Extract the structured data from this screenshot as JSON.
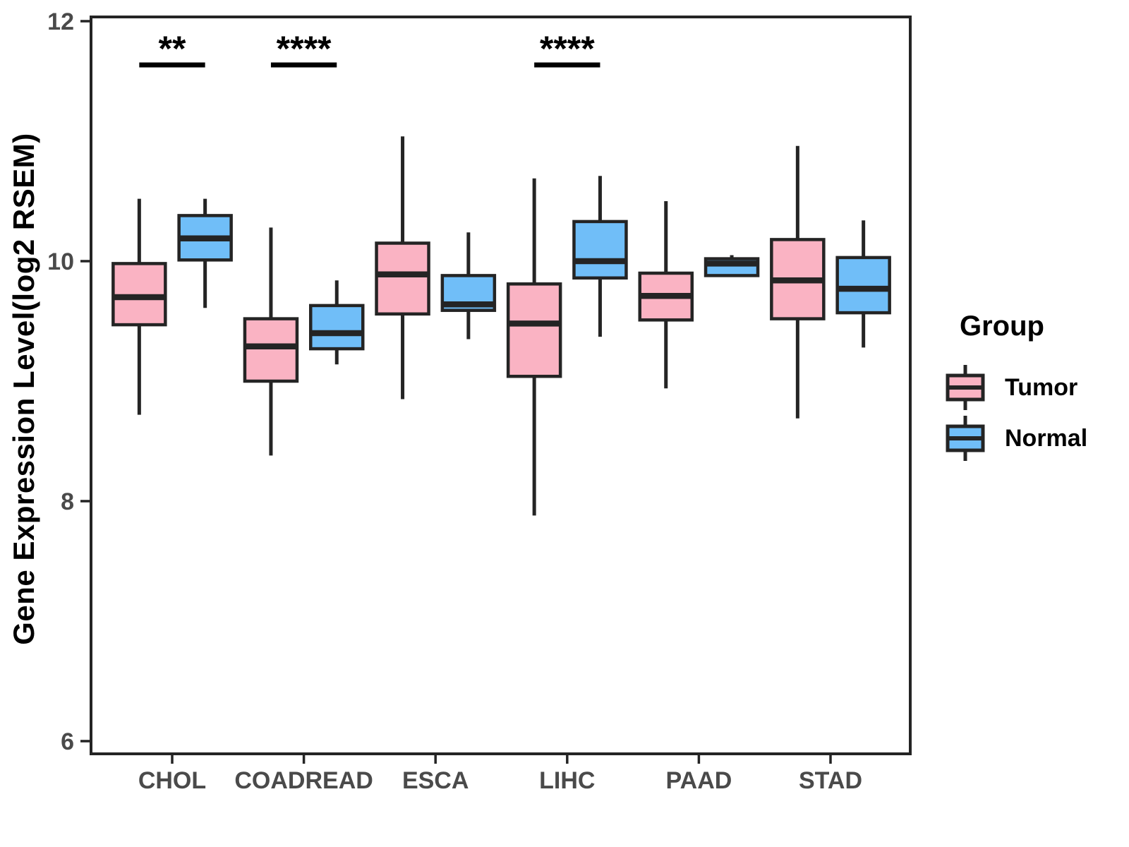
{
  "chart_data": {
    "type": "boxplot",
    "title": "",
    "ylabel": "Gene Expression Level(log2 RSEM)",
    "xlabel": "",
    "categories": [
      "CHOL",
      "COADREAD",
      "ESCA",
      "LIHC",
      "PAAD",
      "STAD"
    ],
    "yticks": [
      6,
      8,
      10,
      12
    ],
    "ylim": [
      5.9,
      12.0
    ],
    "grid": "off",
    "legend": {
      "title": "Group",
      "position": "right"
    },
    "colors": {
      "line": "#242424",
      "axis_text": "#4a4a4a",
      "tumor": "#FAB3C3",
      "normal": "#70BEF8"
    },
    "series": [
      {
        "name": "Tumor",
        "color": "#FAB3C3",
        "boxes": [
          {
            "category": "CHOL",
            "low": 8.72,
            "q1": 9.47,
            "median": 9.7,
            "q3": 9.98,
            "high": 10.52
          },
          {
            "category": "COADREAD",
            "low": 8.38,
            "q1": 9.0,
            "median": 9.29,
            "q3": 9.52,
            "high": 10.28
          },
          {
            "category": "ESCA",
            "low": 8.85,
            "q1": 9.56,
            "median": 9.89,
            "q3": 10.15,
            "high": 11.04
          },
          {
            "category": "LIHC",
            "low": 7.88,
            "q1": 9.04,
            "median": 9.48,
            "q3": 9.81,
            "high": 10.69
          },
          {
            "category": "PAAD",
            "low": 8.94,
            "q1": 9.51,
            "median": 9.71,
            "q3": 9.9,
            "high": 10.5
          },
          {
            "category": "STAD",
            "low": 8.69,
            "q1": 9.52,
            "median": 9.84,
            "q3": 10.18,
            "high": 10.96
          }
        ]
      },
      {
        "name": "Normal",
        "color": "#70BEF8",
        "boxes": [
          {
            "category": "CHOL",
            "low": 9.61,
            "q1": 10.01,
            "median": 10.19,
            "q3": 10.38,
            "high": 10.52
          },
          {
            "category": "COADREAD",
            "low": 9.14,
            "q1": 9.27,
            "median": 9.4,
            "q3": 9.63,
            "high": 9.84
          },
          {
            "category": "ESCA",
            "low": 9.35,
            "q1": 9.59,
            "median": 9.64,
            "q3": 9.88,
            "high": 10.24
          },
          {
            "category": "LIHC",
            "low": 9.37,
            "q1": 9.86,
            "median": 10.0,
            "q3": 10.33,
            "high": 10.71
          },
          {
            "category": "PAAD",
            "low": 9.87,
            "q1": 9.88,
            "median": 9.98,
            "q3": 10.02,
            "high": 10.05
          },
          {
            "category": "STAD",
            "low": 9.28,
            "q1": 9.57,
            "median": 9.77,
            "q3": 10.03,
            "high": 10.34
          }
        ]
      }
    ],
    "significance": [
      {
        "category": "CHOL",
        "label": "**"
      },
      {
        "category": "COADREAD",
        "label": "****"
      },
      {
        "category": "LIHC",
        "label": "****"
      }
    ]
  }
}
